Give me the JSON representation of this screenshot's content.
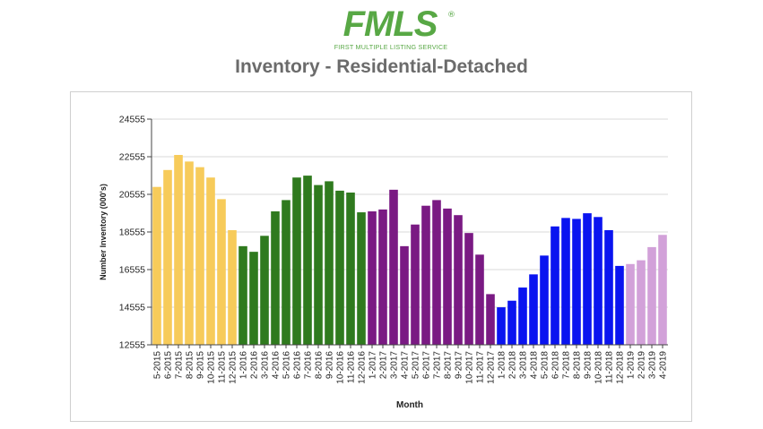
{
  "logo": {
    "word": "FMLS",
    "registered": "®",
    "subtitle": "FIRST MULTIPLE LISTING SERVICE",
    "color": "#58a845"
  },
  "page_title": "Inventory - Residential-Detached",
  "chart_data": {
    "type": "bar",
    "title": "Inventory - Residential-Detached",
    "xlabel": "Month",
    "ylabel": "Number Inventory (000's)",
    "ylim": [
      12555,
      24555
    ],
    "yticks": [
      12555,
      14555,
      16555,
      18555,
      20555,
      22555,
      24555
    ],
    "grid": true,
    "legend": "none",
    "categories": [
      "5-2015",
      "6-2015",
      "7-2015",
      "8-2015",
      "9-2015",
      "10-2015",
      "11-2015",
      "12-2015",
      "1-2016",
      "2-2016",
      "3-2016",
      "4-2016",
      "5-2016",
      "6-2016",
      "7-2016",
      "8-2016",
      "9-2016",
      "10-2016",
      "11-2016",
      "12-2016",
      "1-2017",
      "2-2017",
      "3-2017",
      "4-2017",
      "5-2017",
      "6-2017",
      "7-2017",
      "8-2017",
      "9-2017",
      "10-2017",
      "11-2017",
      "12-2017",
      "1-2018",
      "2-2018",
      "3-2018",
      "4-2018",
      "5-2018",
      "6-2018",
      "7-2018",
      "8-2018",
      "9-2018",
      "10-2018",
      "11-2018",
      "12-2018",
      "1-2019",
      "2-2019",
      "3-2019",
      "4-2019"
    ],
    "values": [
      20950,
      21850,
      22650,
      22300,
      22000,
      21450,
      20300,
      18650,
      17800,
      17500,
      18350,
      19650,
      20250,
      21450,
      21550,
      21050,
      21250,
      20750,
      20650,
      19600,
      19650,
      19750,
      20800,
      17800,
      18950,
      19950,
      20250,
      19800,
      19450,
      18500,
      17350,
      15250,
      14550,
      14900,
      15600,
      16300,
      17300,
      18850,
      19300,
      19250,
      19550,
      19350,
      18650,
      16750,
      16850,
      17050,
      17750,
      18400
    ],
    "colors": {
      "2015": "#f7cb5a",
      "2016": "#2f7a1e",
      "2017": "#7a1a83",
      "2018": "#0a14f0",
      "2019": "#d2a1d9"
    }
  }
}
